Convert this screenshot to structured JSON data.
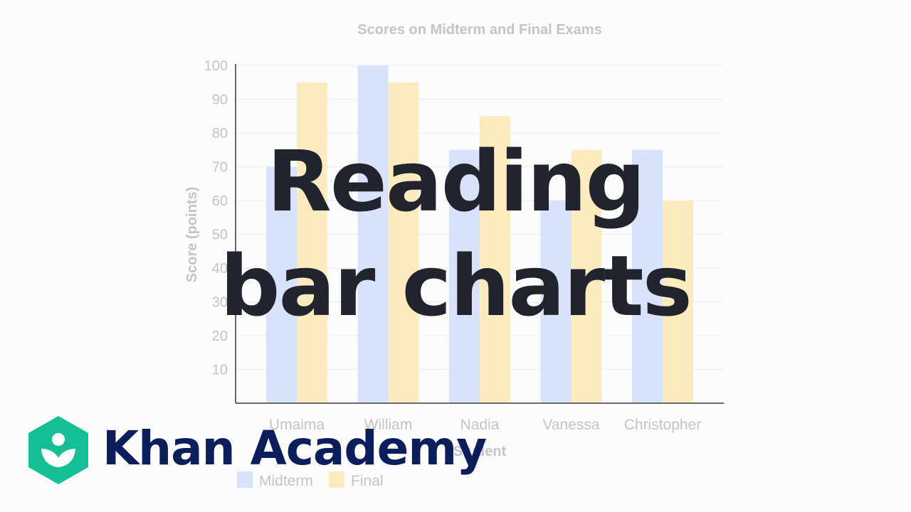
{
  "overlay": {
    "title_line1": "Reading",
    "title_line2": "bar charts"
  },
  "brand": {
    "name": "Khan Academy",
    "logo_icon": "khan-academy-logo-icon",
    "logo_color": "#14bf96",
    "name_color": "#0b1d5a"
  },
  "colors": {
    "midterm": "#d8e2fb",
    "final": "#fdebc0",
    "axis": "#6b6b6b",
    "grid": "#ececec",
    "text": "#c4c4c4",
    "title_overlay": "#21242c"
  },
  "chart_data": {
    "type": "bar",
    "title": "Scores on Midterm and Final Exams",
    "xlabel": "Student",
    "ylabel": "Score (points)",
    "categories": [
      "Umaima",
      "William",
      "Nadia",
      "Vanessa",
      "Christopher"
    ],
    "series": [
      {
        "name": "Midterm",
        "values": [
          70,
          100,
          75,
          60,
          75
        ]
      },
      {
        "name": "Final",
        "values": [
          95,
          95,
          85,
          75,
          60
        ]
      }
    ],
    "ylim": [
      0,
      100
    ],
    "yticks": [
      10,
      20,
      30,
      40,
      50,
      60,
      70,
      80,
      90,
      100
    ],
    "grid": true,
    "legend": "bottom-left"
  }
}
